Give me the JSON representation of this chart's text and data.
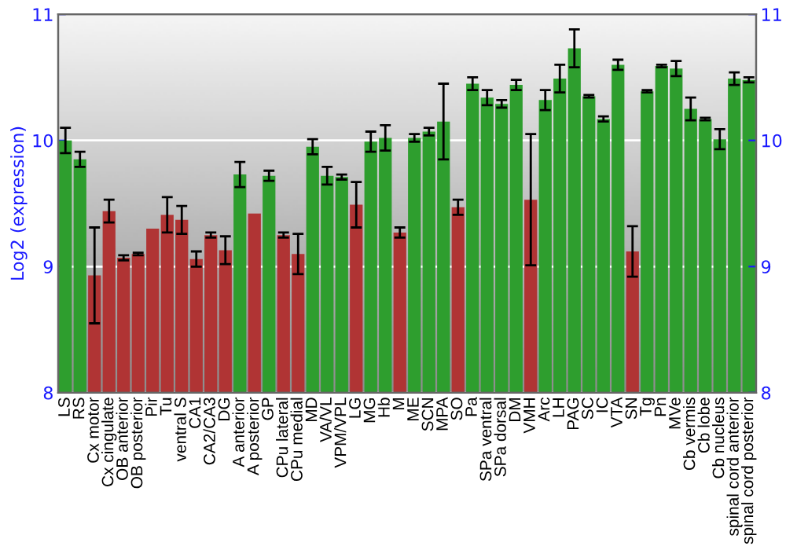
{
  "chart_data": {
    "type": "bar",
    "ylabel": "Log2 (expression)",
    "categories": [
      "LS",
      "RS",
      "Cx motor",
      "Cx cingulate",
      "OB anterior",
      "OB posterior",
      "Pir",
      "Tu",
      "ventral S",
      "CA1",
      "CA2/CA3",
      "DG",
      "A anterior",
      "A posterior",
      "GP",
      "CPu lateral",
      "CPu medial",
      "MD",
      "VA/VL",
      "VPM/VPL",
      "LG",
      "MG",
      "Hb",
      "M",
      "ME",
      "SCN",
      "MPA",
      "SO",
      "Pa",
      "SPa ventral",
      "SPa dorsal",
      "DM",
      "VMH",
      "Arc",
      "LH",
      "PAG",
      "SC",
      "IC",
      "VTA",
      "SN",
      "Tg",
      "Pn",
      "MVe",
      "Cb vermis",
      "Cb lobe",
      "Cb nucleus",
      "spinal cord anterior",
      "spinal cord posterior"
    ],
    "values": [
      10.0,
      9.85,
      8.93,
      9.44,
      9.07,
      9.1,
      9.3,
      9.41,
      9.37,
      9.06,
      9.25,
      9.13,
      9.73,
      9.42,
      9.72,
      9.25,
      9.1,
      9.95,
      9.72,
      9.71,
      9.49,
      9.99,
      10.02,
      9.27,
      10.02,
      10.07,
      10.15,
      9.47,
      10.45,
      10.34,
      10.29,
      10.44,
      9.53,
      10.32,
      10.49,
      10.73,
      10.35,
      10.17,
      10.6,
      9.12,
      10.39,
      10.59,
      10.57,
      10.25,
      10.17,
      10.01,
      10.49,
      10.48
    ],
    "errors": [
      0.1,
      0.06,
      0.38,
      0.09,
      0.02,
      0.01,
      null,
      0.14,
      0.11,
      0.06,
      0.02,
      0.11,
      0.1,
      null,
      0.04,
      0.02,
      0.16,
      0.06,
      0.07,
      0.02,
      0.18,
      0.08,
      0.1,
      0.04,
      0.03,
      0.03,
      0.3,
      0.06,
      0.05,
      0.06,
      0.03,
      0.04,
      0.52,
      0.08,
      0.11,
      0.15,
      0.01,
      0.02,
      0.04,
      0.2,
      0.01,
      0.01,
      0.06,
      0.09,
      0.01,
      0.08,
      0.05,
      0.02
    ],
    "colors": [
      "#2e9e2e",
      "#2e9e2e",
      "#b03434",
      "#b03434",
      "#b03434",
      "#b03434",
      "#b03434",
      "#b03434",
      "#b03434",
      "#b03434",
      "#b03434",
      "#b03434",
      "#2e9e2e",
      "#b03434",
      "#2e9e2e",
      "#b03434",
      "#b03434",
      "#2e9e2e",
      "#2e9e2e",
      "#2e9e2e",
      "#b03434",
      "#2e9e2e",
      "#2e9e2e",
      "#b03434",
      "#2e9e2e",
      "#2e9e2e",
      "#2e9e2e",
      "#b03434",
      "#2e9e2e",
      "#2e9e2e",
      "#2e9e2e",
      "#2e9e2e",
      "#b03434",
      "#2e9e2e",
      "#2e9e2e",
      "#2e9e2e",
      "#2e9e2e",
      "#2e9e2e",
      "#2e9e2e",
      "#b03434",
      "#2e9e2e",
      "#2e9e2e",
      "#2e9e2e",
      "#2e9e2e",
      "#2e9e2e",
      "#2e9e2e",
      "#2e9e2e",
      "#2e9e2e"
    ],
    "ylim": [
      8,
      11
    ],
    "yticks": [
      8,
      9,
      10,
      11
    ],
    "y2lim": [
      8,
      11
    ],
    "y2ticks": [
      8,
      9,
      10,
      11
    ],
    "grid": "y"
  }
}
